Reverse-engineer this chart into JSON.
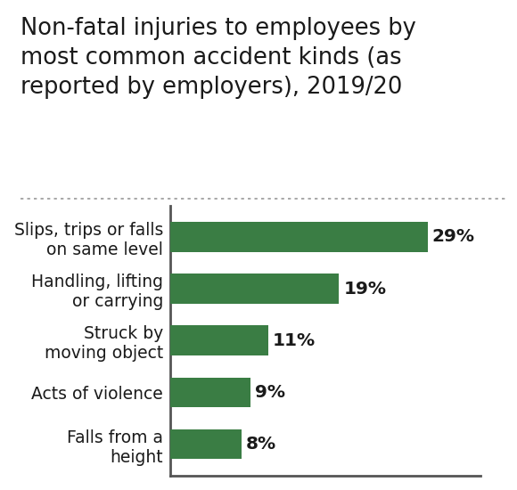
{
  "title": "Non-fatal injuries to employees by\nmost common accident kinds (as\nreported by employers), 2019/20",
  "categories": [
    "Falls from a\nheight",
    "Acts of violence",
    "Struck by\nmoving object",
    "Handling, lifting\nor carrying",
    "Slips, trips or falls\non same level"
  ],
  "values": [
    8,
    9,
    11,
    19,
    29
  ],
  "bar_color": "#3a7d44",
  "label_color": "#1a1a1a",
  "title_color": "#1a1a1a",
  "value_color": "#1a1a1a",
  "background_color": "#ffffff",
  "axis_color": "#555555",
  "dotted_line_color": "#999999",
  "title_fontsize": 18.5,
  "label_fontsize": 13.5,
  "value_fontsize": 14.5,
  "xlim": [
    0,
    35
  ],
  "bar_height": 0.58
}
